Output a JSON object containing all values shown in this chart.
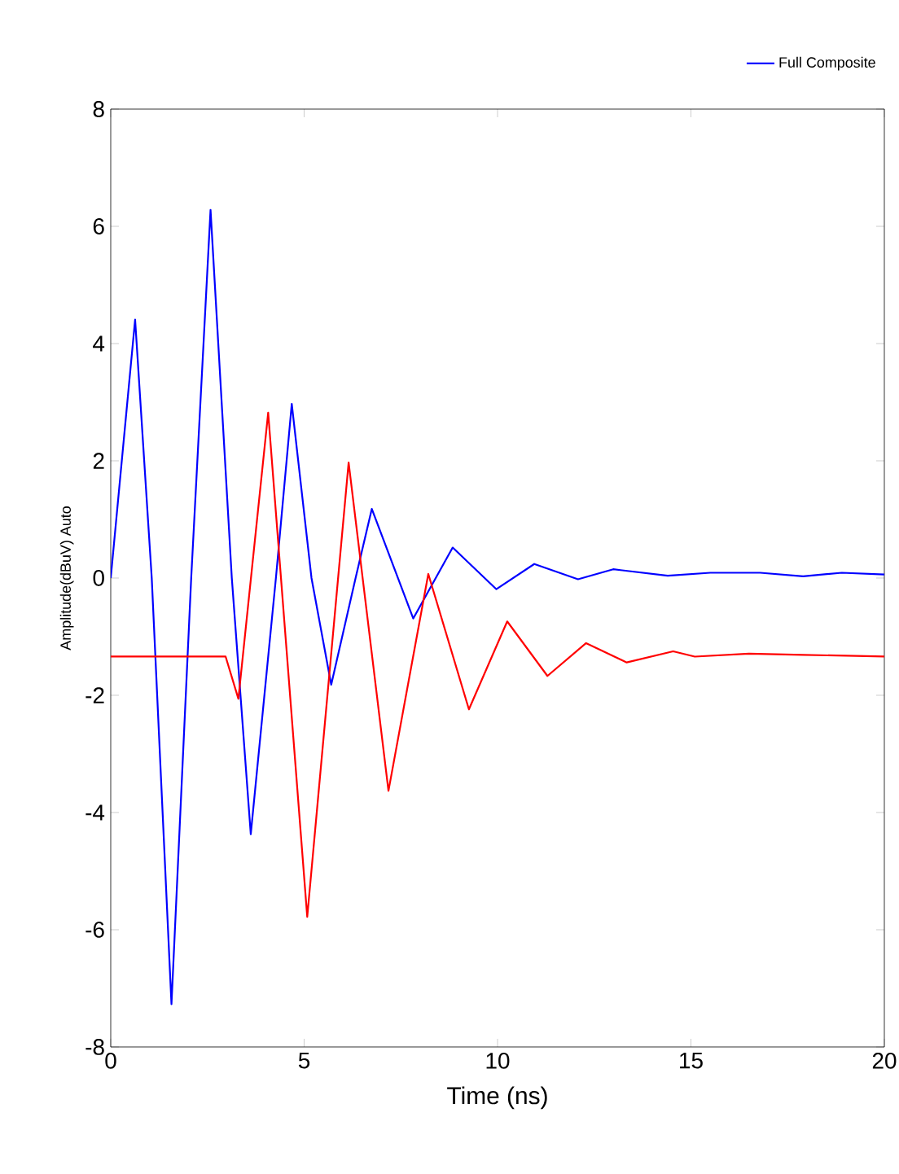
{
  "chart_data": {
    "type": "line",
    "xlabel": "Time (ns)",
    "ylabel": "Amplitude(dBuV)  Auto",
    "xlim": [
      0,
      20
    ],
    "ylim": [
      -8,
      8
    ],
    "xticks": [
      0,
      5,
      10,
      15,
      20
    ],
    "yticks": [
      -8,
      -6,
      -4,
      -2,
      0,
      2,
      4,
      6,
      8
    ],
    "grid": false,
    "legend": "top right",
    "marker": "none",
    "line_style": "solid",
    "series": [
      {
        "name": "Full Composite",
        "color": "#0000ff",
        "x": [
          0,
          0.63,
          1.06,
          1.57,
          2.08,
          2.58,
          3.13,
          3.62,
          4.27,
          4.68,
          5.19,
          5.7,
          6.33,
          6.75,
          7.82,
          8.84,
          9.97,
          10.95,
          12.08,
          12.99,
          14.4,
          15.5,
          16.79,
          17.9,
          18.9,
          20.0
        ],
        "values": [
          0,
          4.41,
          0,
          -7.27,
          0,
          6.28,
          0,
          -4.37,
          0,
          2.97,
          0,
          -1.82,
          0,
          1.18,
          -0.69,
          0.52,
          -0.19,
          0.24,
          -0.02,
          0.15,
          0.04,
          0.09,
          0.09,
          0.03,
          0.09,
          0.06
        ]
      },
      {
        "color": "#ff0000",
        "x": [
          0,
          2.97,
          3.3,
          4.07,
          5.08,
          6.15,
          7.18,
          8.21,
          9.26,
          10.25,
          11.29,
          12.29,
          13.34,
          14.54,
          15.1,
          16.5,
          17.9,
          20.0
        ],
        "values": [
          -1.34,
          -1.34,
          -2.06,
          2.82,
          -5.78,
          1.97,
          -3.63,
          0.07,
          -2.24,
          -0.74,
          -1.67,
          -1.11,
          -1.44,
          -1.25,
          -1.34,
          -1.29,
          -1.31,
          -1.34
        ]
      }
    ]
  }
}
